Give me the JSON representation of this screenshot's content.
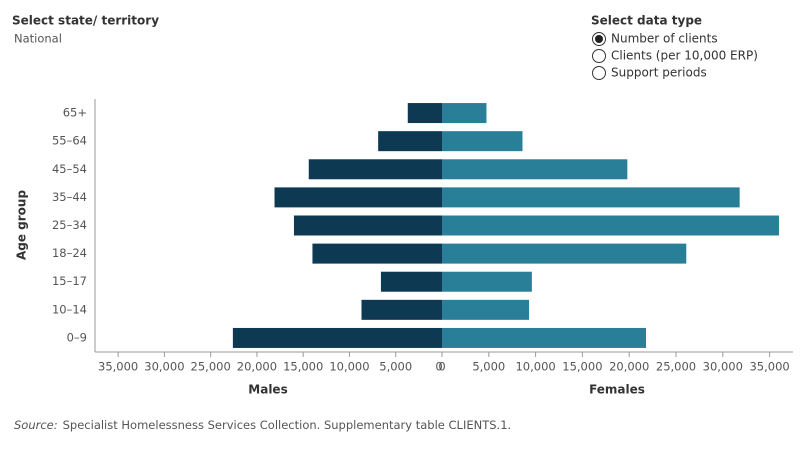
{
  "controls": {
    "state_label": "Select state/ territory",
    "state_value": "National",
    "data_type_label": "Select data type",
    "data_type_options": [
      "Number of clients",
      "Clients (per 10,000 ERP)",
      "Support periods"
    ],
    "selected": 0
  },
  "chart_data": {
    "type": "pyramid",
    "y_label": "Age group",
    "categories": [
      "65+",
      "55–64",
      "45–54",
      "35–44",
      "25–34",
      "18–24",
      "15–17",
      "10–14",
      "0–9"
    ],
    "series": [
      {
        "name": "Males",
        "color": "#0d3a52",
        "values": [
          3700,
          6900,
          14400,
          18100,
          16000,
          14000,
          6600,
          8700,
          22600
        ]
      },
      {
        "name": "Females",
        "color": "#2a7f98",
        "values": [
          4750,
          8600,
          19800,
          31800,
          36000,
          26100,
          9600,
          9300,
          21800
        ]
      }
    ],
    "xlim": [
      0,
      37500
    ],
    "xticks": [
      0,
      {
        "value": 5000,
        "label": "5,000"
      },
      {
        "value": 10000,
        "label": "10,000"
      },
      {
        "value": 15000,
        "label": "15,000"
      },
      {
        "value": 20000,
        "label": "20,000"
      },
      {
        "value": 25000,
        "label": "25,000"
      },
      {
        "value": 30000,
        "label": "30,000"
      },
      {
        "value": 35000,
        "label": "35,000"
      }
    ]
  },
  "source": {
    "prefix": "Source:",
    "text": "Specialist Homelessness Services Collection. Supplementary table CLIENTS.1."
  }
}
